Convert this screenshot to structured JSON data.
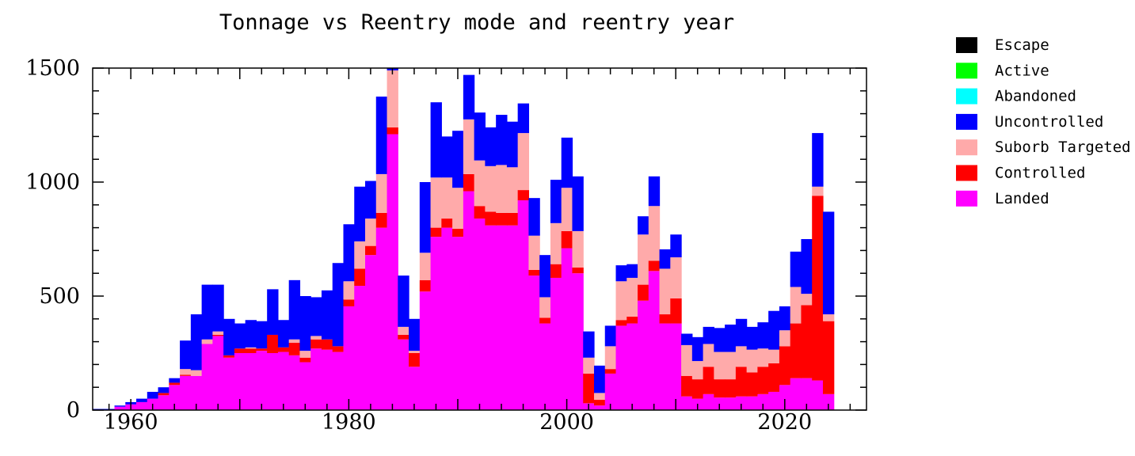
{
  "chart_data": {
    "type": "bar",
    "stacked": true,
    "title": "Tonnage vs Reentry mode and reentry year",
    "xlabel": "",
    "ylabel": "",
    "xlim": [
      1956.5,
      2027.5
    ],
    "ylim": [
      0,
      1500
    ],
    "x_ticks": [
      1960,
      1980,
      2000,
      2020
    ],
    "x_tick_labels": [
      "1960",
      "1980",
      "2000",
      "2020"
    ],
    "y_ticks": [
      0,
      500,
      1000,
      1500
    ],
    "y_tick_labels": [
      "0",
      "500",
      "1000",
      "1500"
    ],
    "grid": false,
    "legend_position": "right",
    "years": [
      1957,
      1958,
      1959,
      1960,
      1961,
      1962,
      1963,
      1964,
      1965,
      1966,
      1967,
      1968,
      1969,
      1970,
      1971,
      1972,
      1973,
      1974,
      1975,
      1976,
      1977,
      1978,
      1979,
      1980,
      1981,
      1982,
      1983,
      1984,
      1985,
      1986,
      1987,
      1988,
      1989,
      1990,
      1991,
      1992,
      1993,
      1994,
      1995,
      1996,
      1997,
      1998,
      1999,
      2000,
      2001,
      2002,
      2003,
      2004,
      2005,
      2006,
      2007,
      2008,
      2009,
      2010,
      2011,
      2012,
      2013,
      2014,
      2015,
      2016,
      2017,
      2018,
      2019,
      2020,
      2021,
      2022,
      2023,
      2024,
      2025
    ],
    "series": [
      {
        "name": "Escape",
        "color": "#000000",
        "values": [
          0,
          0,
          0,
          0,
          0,
          0,
          0,
          0,
          0,
          0,
          0,
          0,
          0,
          0,
          0,
          0,
          0,
          0,
          0,
          0,
          0,
          0,
          0,
          0,
          0,
          0,
          0,
          0,
          0,
          0,
          0,
          0,
          0,
          0,
          0,
          0,
          0,
          0,
          0,
          0,
          0,
          0,
          0,
          0,
          0,
          0,
          0,
          0,
          0,
          0,
          0,
          0,
          0,
          0,
          0,
          0,
          0,
          0,
          0,
          0,
          0,
          0,
          0,
          0,
          0,
          0,
          0,
          0,
          0
        ]
      },
      {
        "name": "Active",
        "color": "#00ff00",
        "values": [
          0,
          0,
          0,
          0,
          0,
          0,
          0,
          0,
          0,
          0,
          0,
          0,
          0,
          0,
          0,
          0,
          0,
          0,
          0,
          0,
          0,
          0,
          0,
          0,
          0,
          0,
          0,
          0,
          0,
          0,
          0,
          0,
          0,
          0,
          0,
          0,
          0,
          0,
          0,
          0,
          0,
          0,
          0,
          0,
          0,
          0,
          0,
          0,
          0,
          0,
          0,
          0,
          0,
          0,
          0,
          0,
          0,
          0,
          0,
          0,
          0,
          0,
          0,
          0,
          0,
          0,
          0,
          0,
          0
        ]
      },
      {
        "name": "Abandoned",
        "color": "#00ffff",
        "values": [
          0,
          0,
          0,
          0,
          0,
          0,
          0,
          0,
          0,
          0,
          0,
          0,
          0,
          0,
          0,
          0,
          0,
          0,
          0,
          0,
          0,
          0,
          0,
          0,
          0,
          0,
          0,
          0,
          0,
          0,
          0,
          0,
          0,
          0,
          0,
          0,
          0,
          0,
          0,
          0,
          0,
          0,
          0,
          0,
          0,
          0,
          0,
          0,
          0,
          0,
          0,
          0,
          0,
          0,
          0,
          0,
          0,
          0,
          0,
          0,
          0,
          0,
          0,
          0,
          0,
          0,
          0,
          0,
          0
        ]
      },
      {
        "name": "Landed",
        "color": "#ff00ff",
        "values": [
          0,
          0,
          15,
          25,
          35,
          50,
          65,
          110,
          150,
          150,
          290,
          325,
          230,
          250,
          250,
          260,
          250,
          255,
          240,
          210,
          270,
          265,
          255,
          455,
          545,
          680,
          800,
          1210,
          310,
          190,
          520,
          760,
          800,
          760,
          960,
          840,
          810,
          810,
          810,
          920,
          590,
          380,
          580,
          710,
          600,
          30,
          20,
          160,
          370,
          380,
          480,
          610,
          380,
          380,
          60,
          50,
          70,
          55,
          55,
          60,
          60,
          70,
          80,
          110,
          140,
          140,
          130,
          70,
          0
        ]
      },
      {
        "name": "Controlled",
        "color": "#ff0000",
        "values": [
          0,
          0,
          0,
          0,
          0,
          0,
          10,
          10,
          5,
          0,
          0,
          5,
          10,
          20,
          20,
          10,
          80,
          20,
          55,
          20,
          40,
          45,
          25,
          30,
          75,
          40,
          65,
          30,
          20,
          60,
          50,
          40,
          40,
          35,
          75,
          55,
          60,
          55,
          55,
          45,
          25,
          25,
          60,
          75,
          25,
          130,
          25,
          20,
          25,
          30,
          70,
          45,
          40,
          110,
          90,
          85,
          120,
          80,
          80,
          130,
          105,
          120,
          125,
          170,
          240,
          320,
          810,
          320,
          0
        ]
      },
      {
        "name": "Suborb Targeted",
        "color": "#ffaaaa",
        "values": [
          0,
          0,
          0,
          0,
          0,
          0,
          0,
          0,
          25,
          25,
          20,
          15,
          0,
          0,
          5,
          0,
          0,
          0,
          15,
          30,
          15,
          0,
          0,
          80,
          120,
          120,
          170,
          250,
          35,
          10,
          120,
          220,
          180,
          180,
          240,
          200,
          200,
          210,
          200,
          250,
          150,
          90,
          180,
          190,
          160,
          70,
          30,
          100,
          170,
          170,
          220,
          240,
          200,
          180,
          135,
          80,
          100,
          120,
          120,
          90,
          100,
          80,
          60,
          70,
          160,
          50,
          40,
          30,
          0
        ]
      },
      {
        "name": "Uncontrolled",
        "color": "#0000ff",
        "values": [
          5,
          5,
          5,
          10,
          15,
          30,
          25,
          20,
          125,
          245,
          240,
          205,
          160,
          110,
          120,
          120,
          200,
          120,
          260,
          240,
          170,
          215,
          365,
          250,
          240,
          165,
          340,
          235,
          225,
          140,
          310,
          330,
          180,
          250,
          195,
          210,
          170,
          220,
          200,
          130,
          165,
          185,
          190,
          220,
          240,
          115,
          120,
          90,
          70,
          60,
          80,
          130,
          85,
          100,
          50,
          105,
          75,
          105,
          120,
          120,
          100,
          115,
          170,
          105,
          155,
          240,
          235,
          450,
          0
        ]
      }
    ]
  }
}
